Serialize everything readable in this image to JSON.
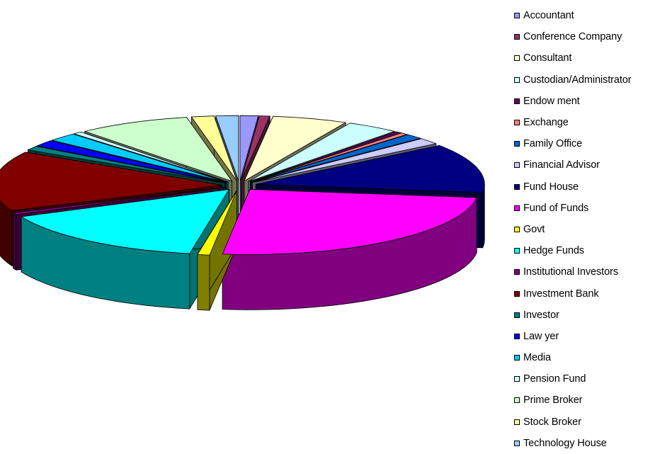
{
  "chart_data": {
    "type": "pie",
    "style": "3d-exploded",
    "title": "",
    "legend_position": "right",
    "slices": [
      {
        "label": "Accountant",
        "value": 1.2,
        "color": "#9999ff"
      },
      {
        "label": "Conference Company",
        "value": 0.7,
        "color": "#993366"
      },
      {
        "label": "Consultant",
        "value": 5.0,
        "color": "#ffffcc"
      },
      {
        "label": "Custodian/Administrator",
        "value": 3.5,
        "color": "#ccffff"
      },
      {
        "label": "Endow ment",
        "value": 0.4,
        "color": "#660066"
      },
      {
        "label": "Exchange",
        "value": 0.5,
        "color": "#ff8080"
      },
      {
        "label": "Family Office",
        "value": 1.2,
        "color": "#0066cc"
      },
      {
        "label": "Financial Advisor",
        "value": 1.5,
        "color": "#ccccff"
      },
      {
        "label": "Fund House",
        "value": 11.5,
        "color": "#000080"
      },
      {
        "label": "Fund of Funds",
        "value": 23.5,
        "color": "#ff00ff"
      },
      {
        "label": "Govt",
        "value": 0.8,
        "color": "#ffff00"
      },
      {
        "label": "Hedge Funds",
        "value": 14.5,
        "color": "#00ffff"
      },
      {
        "label": "Institutional Investors",
        "value": 0.5,
        "color": "#800080"
      },
      {
        "label": "Investment Bank",
        "value": 14.0,
        "color": "#800000"
      },
      {
        "label": "Investor",
        "value": 1.0,
        "color": "#008080"
      },
      {
        "label": "Law yer",
        "value": 1.5,
        "color": "#0000ff"
      },
      {
        "label": "Media",
        "value": 2.0,
        "color": "#00ccff"
      },
      {
        "label": "Pension Fund",
        "value": 0.6,
        "color": "#ccffff"
      },
      {
        "label": "Prime Broker",
        "value": 7.5,
        "color": "#ccffcc"
      },
      {
        "label": "Stock Broker",
        "value": 1.5,
        "color": "#ffff99"
      },
      {
        "label": "Technology House",
        "value": 1.5,
        "color": "#99ccff"
      }
    ]
  }
}
